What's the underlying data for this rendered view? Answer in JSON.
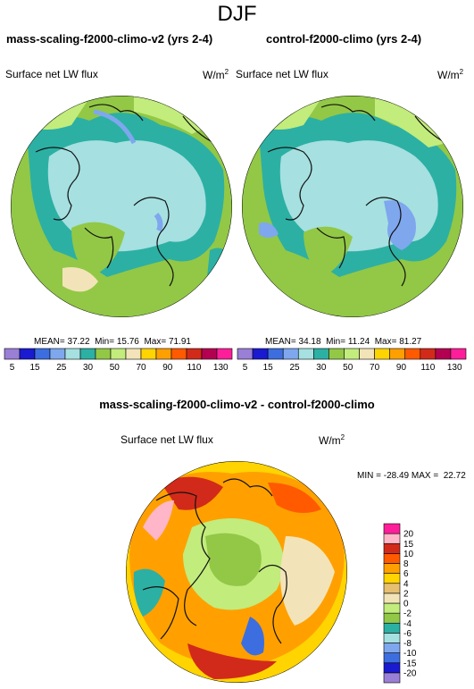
{
  "title": "DJF",
  "panels": [
    {
      "title": "mass-scaling-f2000-climo-v2 (yrs 2-4)",
      "variable": "Surface net LW flux",
      "units": "W/m",
      "units_sup": "2",
      "stats": {
        "mean_label": "MEAN=",
        "mean": "37.22",
        "min_label": "Min=",
        "min": "15.76",
        "max_label": "Max=",
        "max": "71.91"
      }
    },
    {
      "title": "control-f2000-climo (yrs 2-4)",
      "variable": "Surface net LW flux",
      "units": "W/m",
      "units_sup": "2",
      "stats": {
        "mean_label": "MEAN=",
        "mean": "34.18",
        "min_label": "Min=",
        "min": "11.24",
        "max_label": "Max=",
        "max": "81.27"
      }
    }
  ],
  "field_colorbar": {
    "colors": [
      "#9a7fd6",
      "#1a1ad0",
      "#3c6ee0",
      "#7ea7ee",
      "#a6e0e0",
      "#2cb0a4",
      "#92c846",
      "#c2ec7c",
      "#f2e4b8",
      "#ffd400",
      "#ffa000",
      "#ff5a00",
      "#d22a1a",
      "#b40050",
      "#ff1e9a"
    ],
    "labels": [
      "5",
      "15",
      "25",
      "30",
      "50",
      "70",
      "90",
      "110",
      "130"
    ],
    "label_values": [
      5,
      15,
      25,
      30,
      50,
      70,
      90,
      110,
      130
    ]
  },
  "diff_panel": {
    "title": "mass-scaling-f2000-climo-v2 - control-f2000-climo",
    "variable": "Surface net LW flux",
    "units": "W/m",
    "units_sup": "2",
    "stats": {
      "min_label": "MIN =",
      "min": "-28.49",
      "max_label": "MAX =",
      "max": "22.72"
    }
  },
  "diff_colorbar": {
    "colors": [
      "#9a7fd6",
      "#1a1ad0",
      "#3c6ee0",
      "#7ea7ee",
      "#a6e0e0",
      "#2cb0a4",
      "#92c846",
      "#c2ec7c",
      "#f2e4b8",
      "#e6c070",
      "#ffd400",
      "#ffa000",
      "#ff5a00",
      "#d22a1a",
      "#ffb6c8",
      "#ff1e9a"
    ],
    "labels": [
      "20",
      "15",
      "10",
      "8",
      "6",
      "4",
      "2",
      "0",
      "-2",
      "-4",
      "-6",
      "-8",
      "-10",
      "-15",
      "-20"
    ],
    "label_values": [
      20,
      15,
      10,
      8,
      6,
      4,
      2,
      0,
      -2,
      -4,
      -6,
      -8,
      -10,
      -15,
      -20
    ]
  },
  "colors": {
    "ocean_field": "#a6e0e0",
    "land_field": "#92c846",
    "diff_warm": "#ff7a10",
    "diff_neutral": "#f2e4b8",
    "coastline": "#111111"
  }
}
